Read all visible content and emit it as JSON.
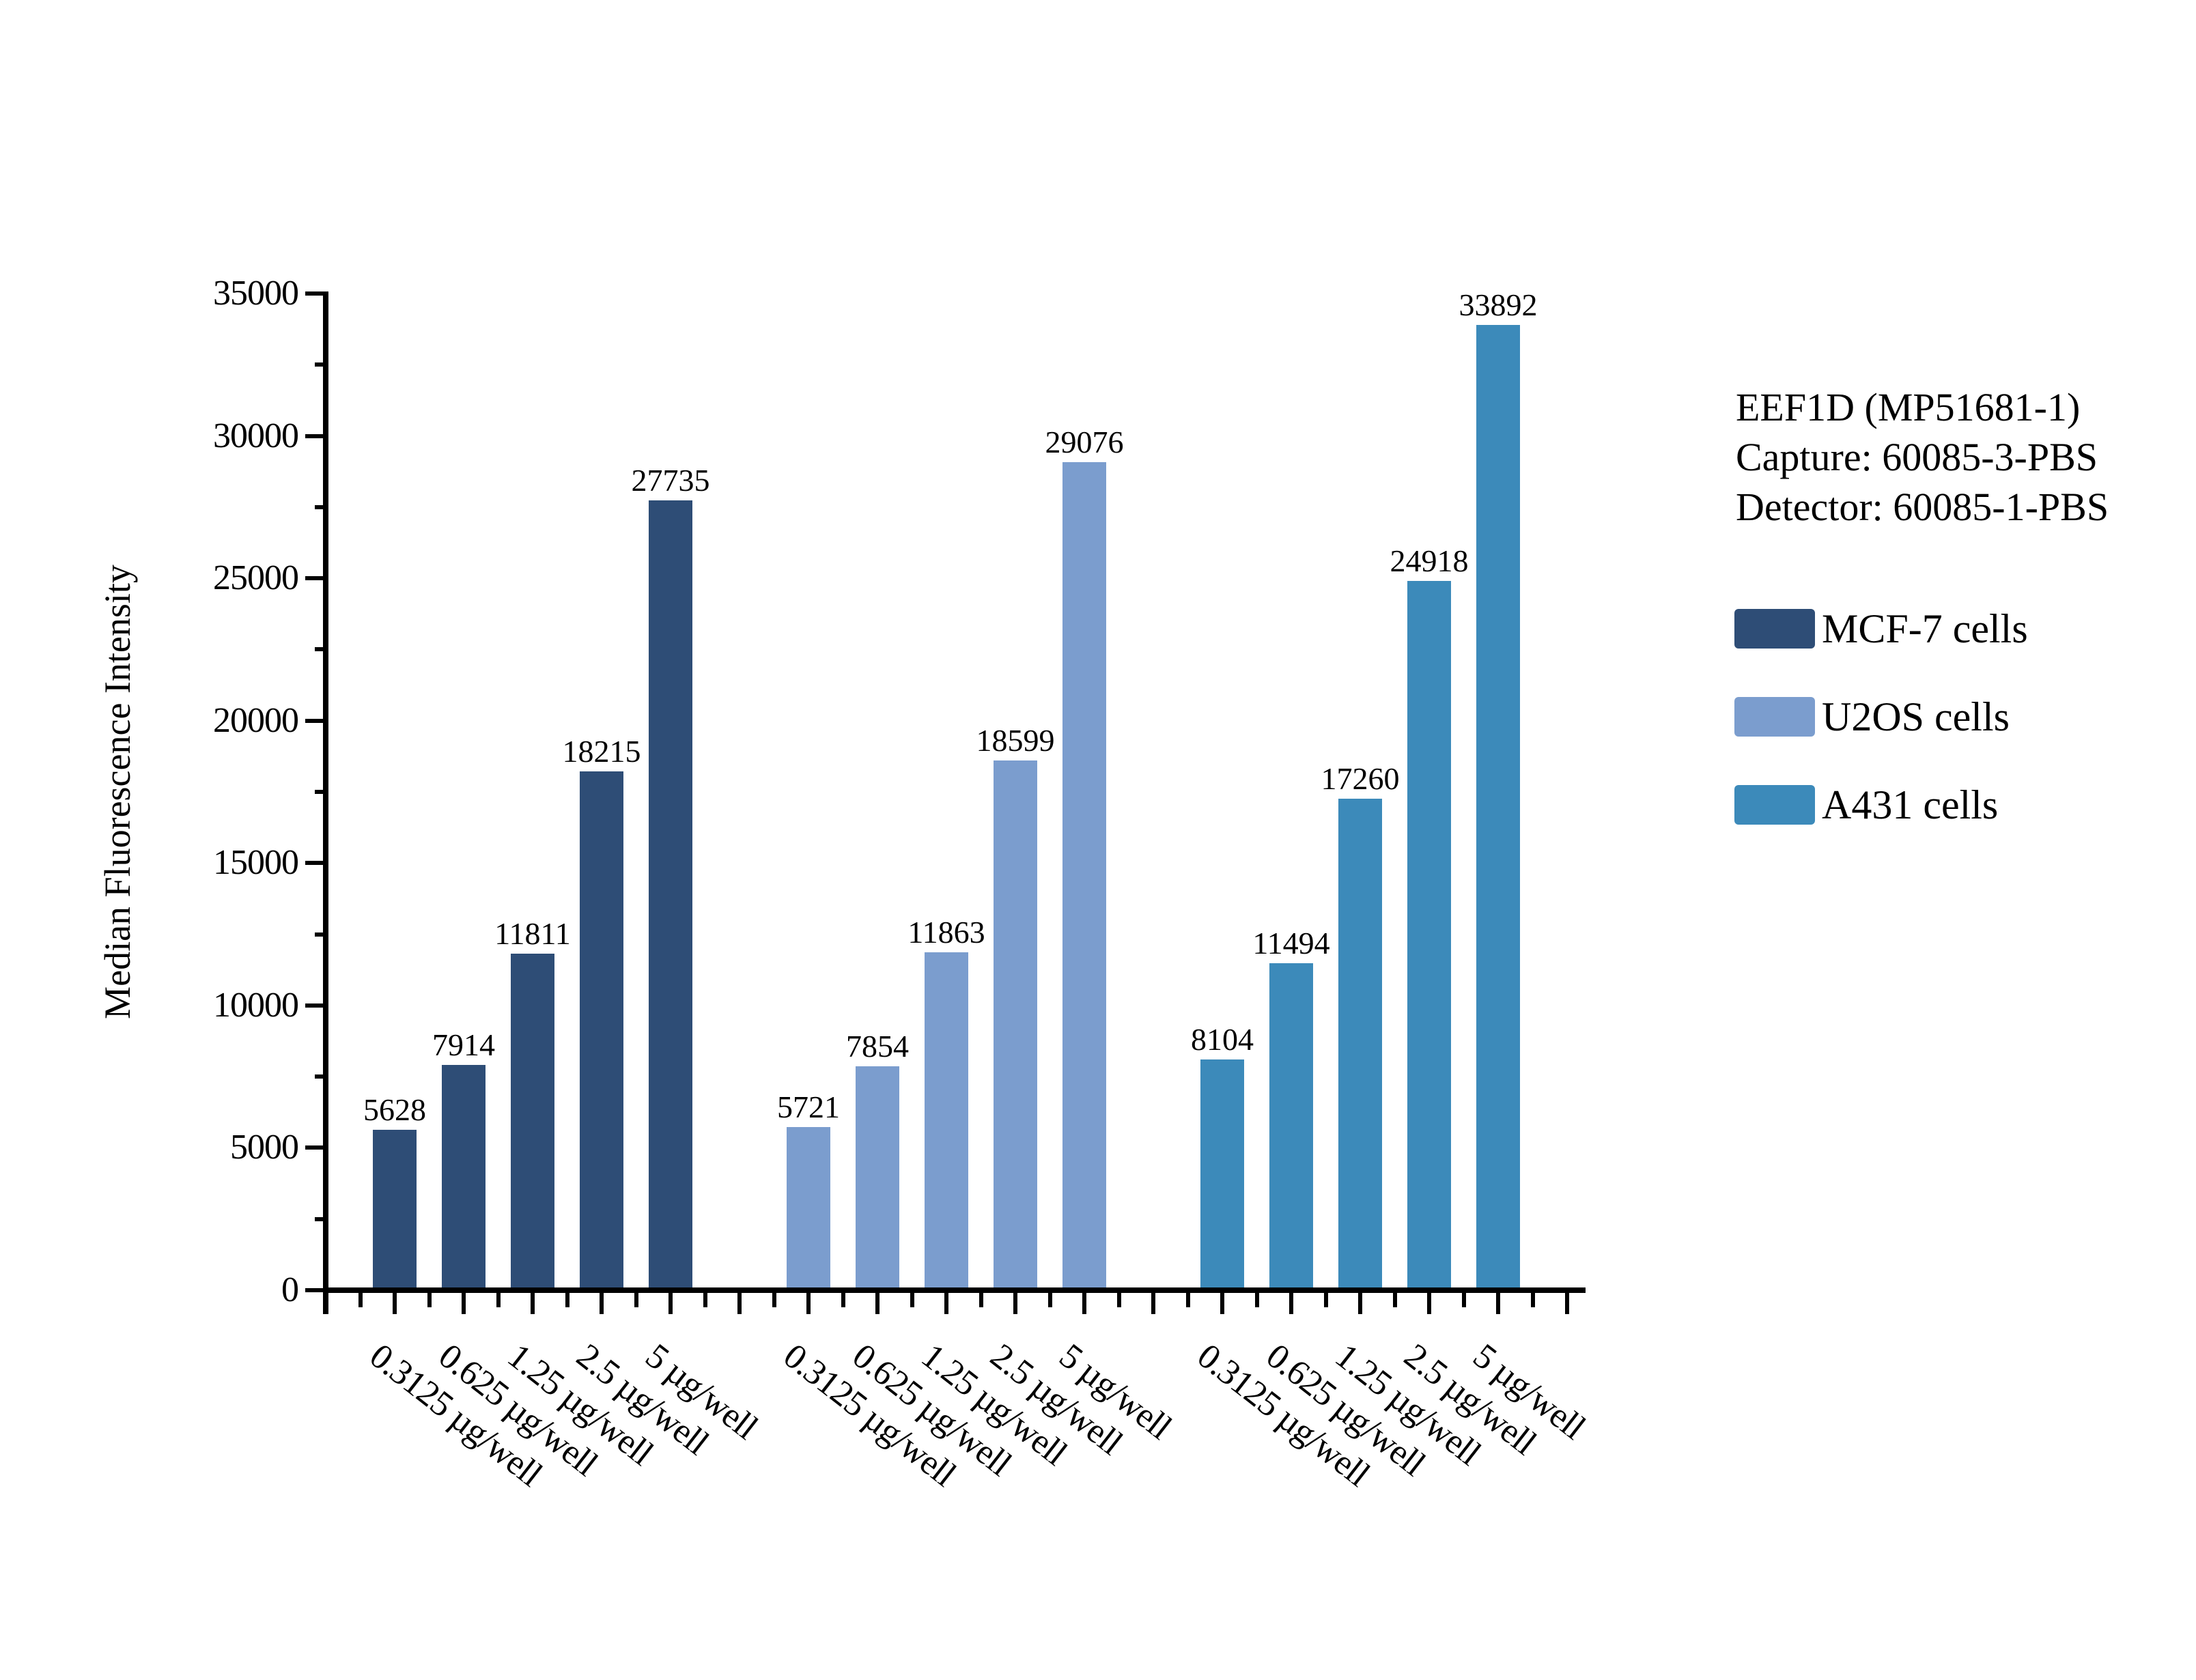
{
  "annotation": {
    "line1": "EEF1D (MP51681-1)",
    "line2": "Capture: 60085-3-PBS",
    "line3": "Detector: 60085-1-PBS"
  },
  "chart_data": {
    "type": "bar",
    "title": "",
    "xlabel": "",
    "ylabel": "Median Fluorescence Intensity",
    "ylim": [
      0,
      35000
    ],
    "y_major_step": 5000,
    "y_minor_step": 2500,
    "y_tick_labels": [
      "0",
      "5000",
      "10000",
      "15000",
      "20000",
      "25000",
      "30000",
      "35000"
    ],
    "grid": false,
    "legend_position": "right",
    "categories": [
      "0.3125 µg/well",
      "0.625 µg/well",
      "1.25 µg/well",
      "2.5 µg/well",
      "5 µg/well"
    ],
    "series": [
      {
        "name": "MCF-7 cells",
        "color": "#2E4D76",
        "values": [
          5628,
          7914,
          11811,
          18215,
          27735
        ]
      },
      {
        "name": "U2OS cells",
        "color": "#7B9DCE",
        "values": [
          5721,
          7854,
          11863,
          18599,
          29076
        ]
      },
      {
        "name": "A431 cells",
        "color": "#3C8ABA",
        "values": [
          8104,
          11494,
          17260,
          24918,
          33892
        ]
      }
    ]
  }
}
